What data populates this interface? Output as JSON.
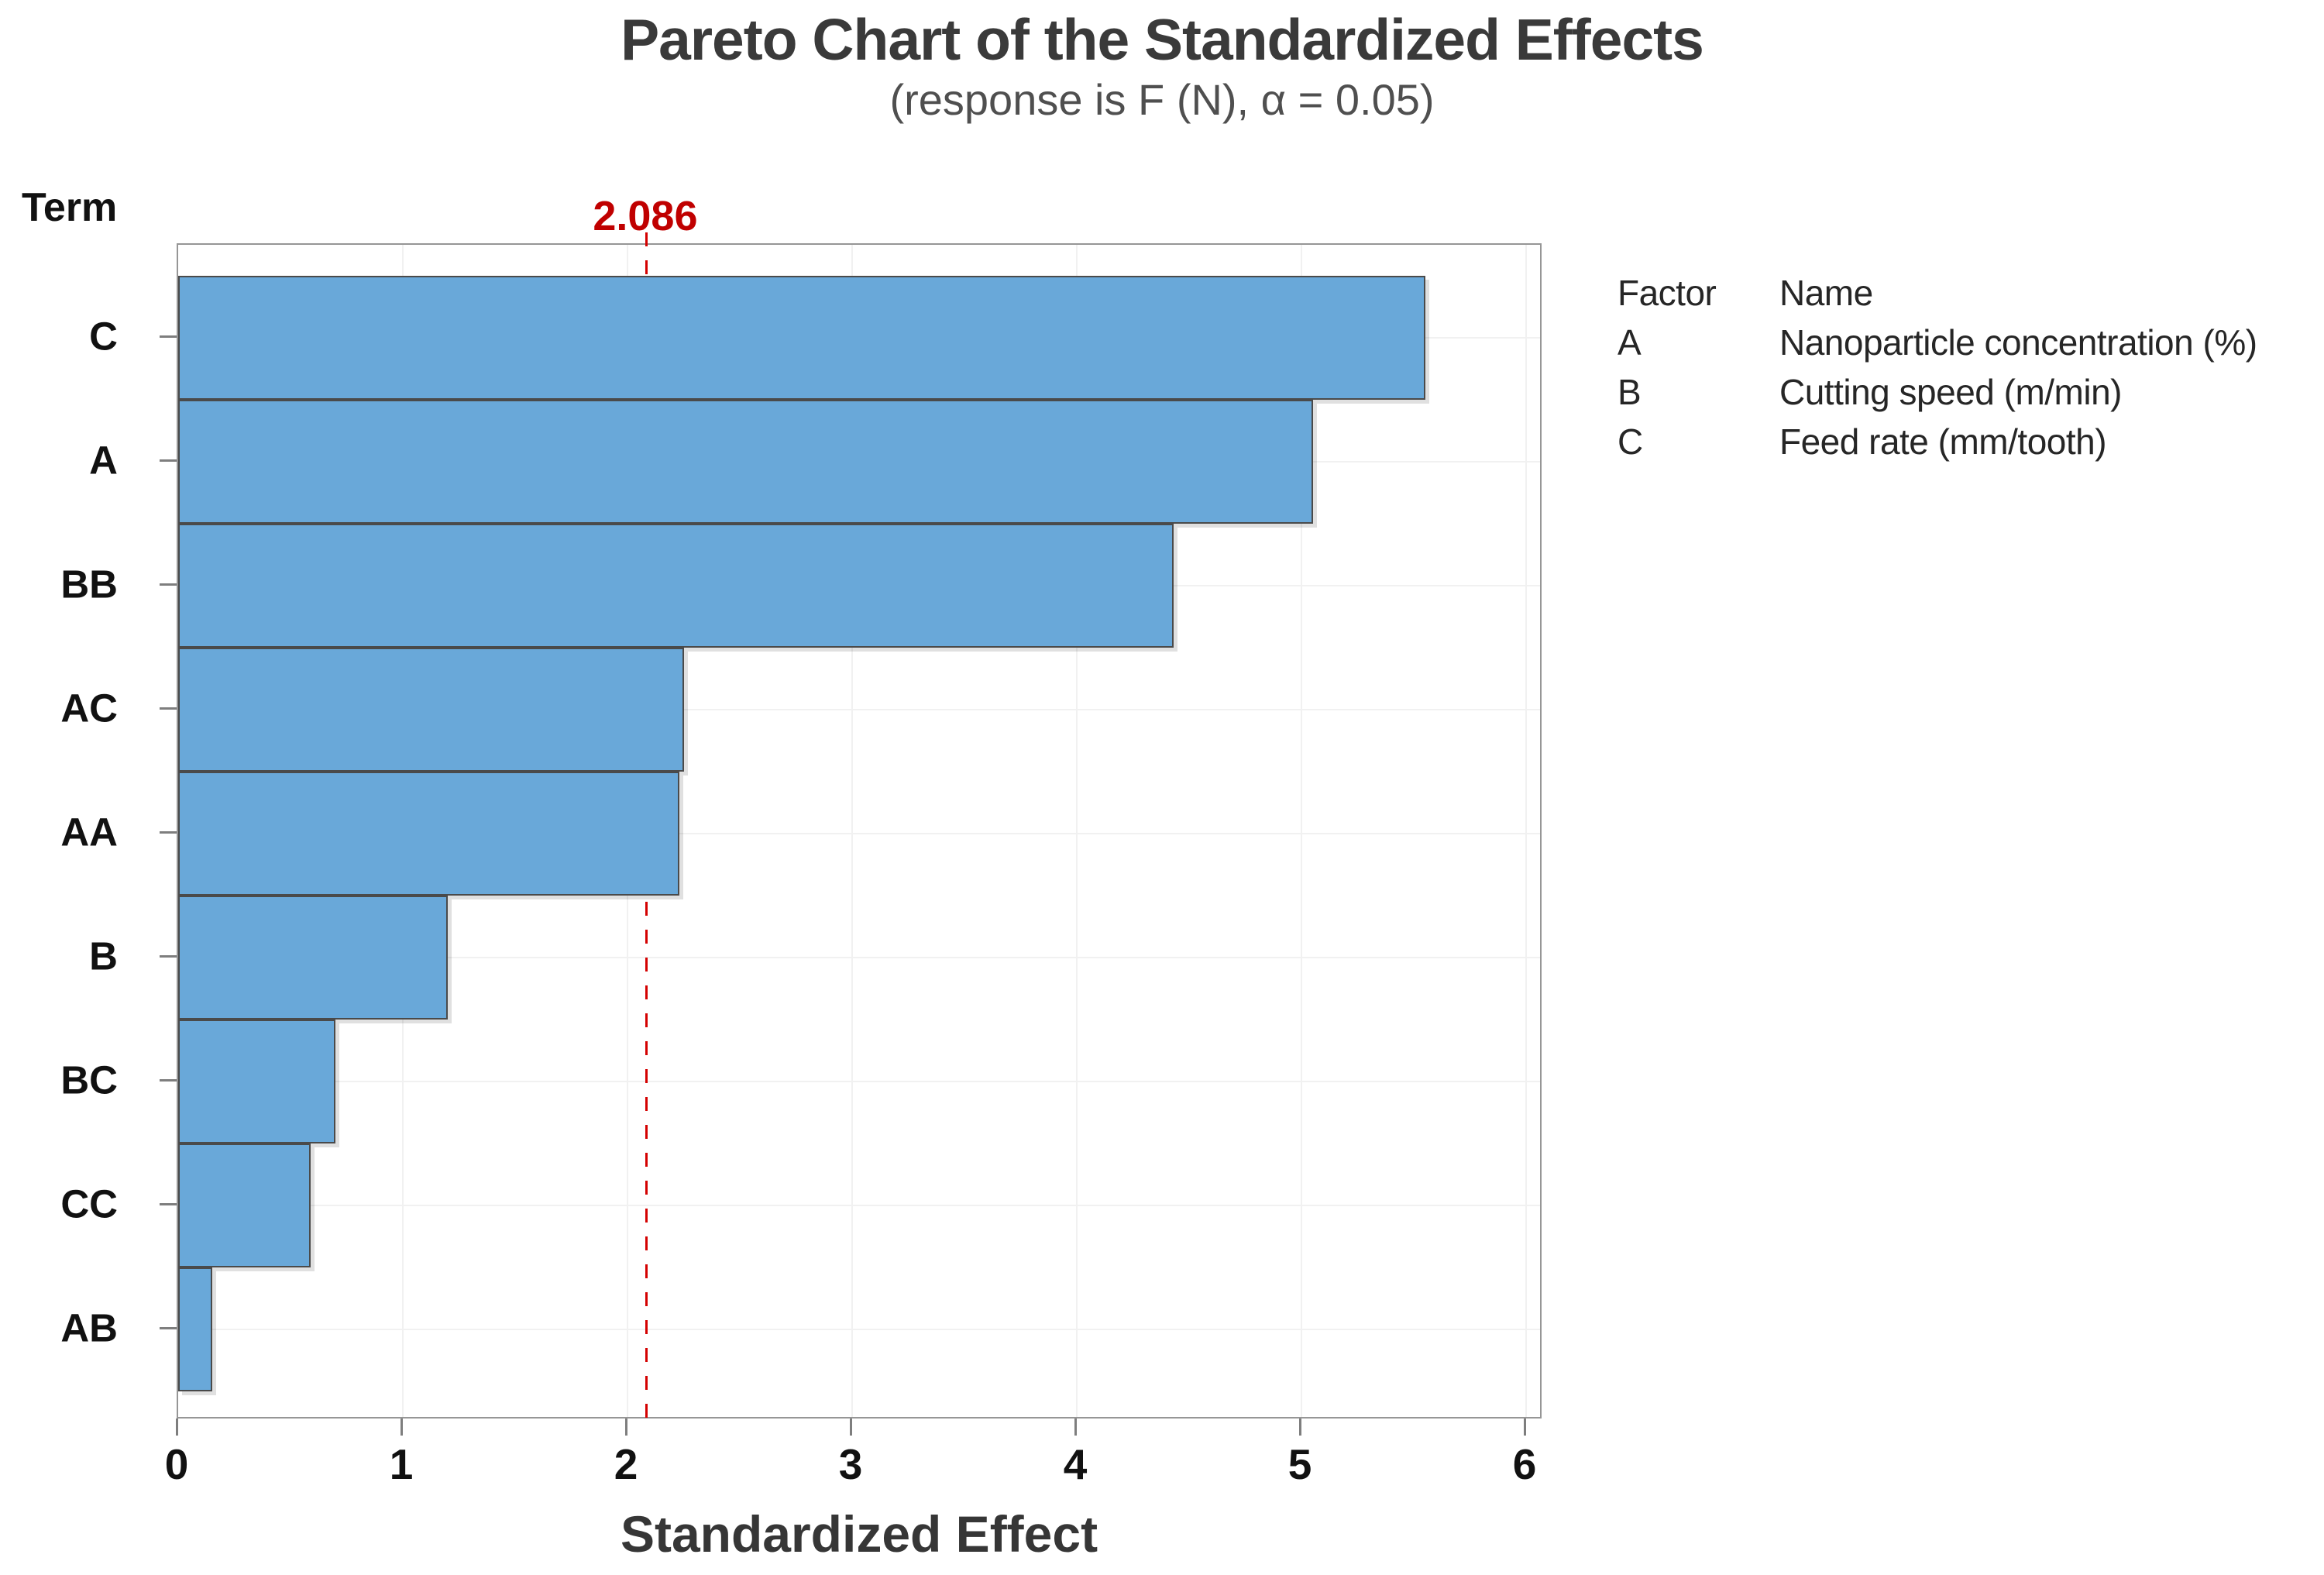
{
  "chart": {
    "title": "Pareto Chart of the Standardized Effects",
    "subtitle": "(response is F (N), α = 0.05)",
    "y_axis_title": "Term",
    "x_axis_title": "Standardized Effect",
    "reference": {
      "label": "2.086",
      "value": 2.086
    }
  },
  "chart_data": {
    "type": "bar",
    "orientation": "horizontal",
    "title": "Pareto Chart of the Standardized Effects",
    "subtitle": "(response is F (N), α = 0.05)",
    "xlabel": "Standardized Effect",
    "ylabel": "Term",
    "categories": [
      "C",
      "A",
      "BB",
      "AC",
      "AA",
      "B",
      "BC",
      "CC",
      "AB"
    ],
    "values": [
      5.55,
      5.05,
      4.43,
      2.25,
      2.23,
      1.2,
      0.7,
      0.59,
      0.15
    ],
    "xlim": [
      0,
      6
    ],
    "x_ticks": [
      0,
      1,
      2,
      3,
      4,
      5,
      6
    ],
    "reference_line": 2.086,
    "alpha": 0.05,
    "grid": true,
    "legend_position": "right",
    "colors": {
      "bar_fill": "#69a8d9",
      "bar_border": "#4a4a4a",
      "reference_line": "#d40000",
      "reference_label": "#c00000",
      "gridline": "#f1f1f1",
      "plot_border": "#969696",
      "title_text": "#3a3a3a"
    }
  },
  "legend": {
    "header": {
      "factor": "Factor",
      "name": "Name"
    },
    "rows": [
      {
        "factor": "A",
        "name": "Nanoparticle concentration (%)"
      },
      {
        "factor": "B",
        "name": "Cutting speed (m/min)"
      },
      {
        "factor": "C",
        "name": "Feed rate (mm/tooth)"
      }
    ]
  }
}
